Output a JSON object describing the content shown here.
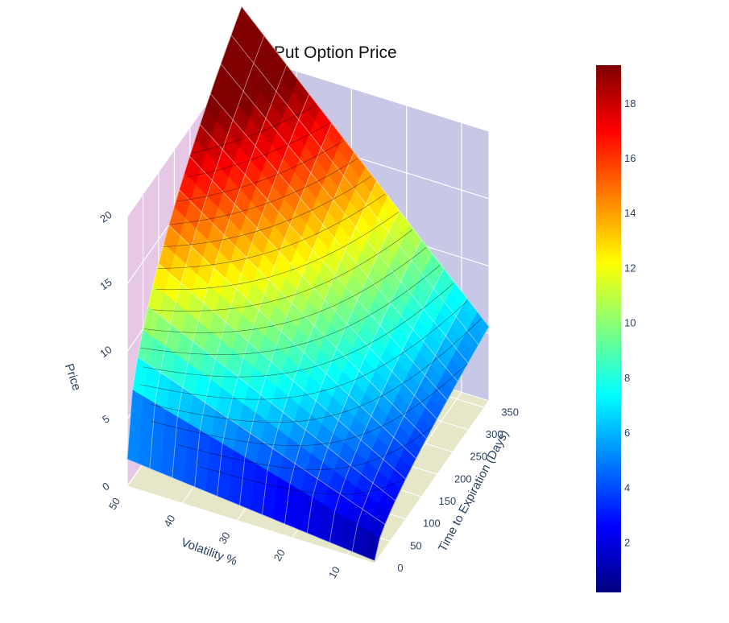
{
  "chart_data": {
    "type": "surface",
    "title": "Long Put Option Price",
    "x_axis": {
      "label": "Volatility %",
      "range": [
        5,
        50
      ],
      "ticks": [
        10,
        20,
        30,
        40,
        50
      ]
    },
    "y_axis": {
      "label": "Time to Expiration (Days)",
      "range": [
        0,
        365
      ],
      "ticks": [
        0,
        50,
        100,
        150,
        200,
        250,
        300,
        350
      ]
    },
    "z_axis": {
      "label": "Price",
      "range": [
        0,
        20
      ],
      "ticks": [
        0,
        5,
        10,
        15,
        20
      ]
    },
    "colorscale": "jet",
    "colorbar": {
      "range": [
        0.2,
        19.4
      ],
      "ticks": [
        2,
        4,
        6,
        8,
        10,
        12,
        14,
        16,
        18
      ]
    },
    "grid": true,
    "contours": "z",
    "surface_samples": {
      "volatility": [
        5,
        10,
        20,
        30,
        40,
        50
      ],
      "days": [
        0,
        50,
        100,
        150,
        200,
        250,
        300,
        365
      ],
      "corners": [
        {
          "volatility": 5,
          "days": 0,
          "price": 0.2
        },
        {
          "volatility": 50,
          "days": 0,
          "price": 2.0
        },
        {
          "volatility": 5,
          "days": 365,
          "price": 5.5
        },
        {
          "volatility": 50,
          "days": 365,
          "price": 19.4
        }
      ]
    }
  }
}
